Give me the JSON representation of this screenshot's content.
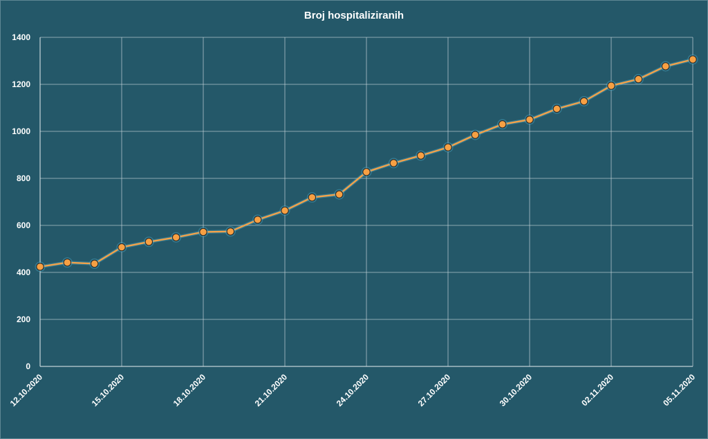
{
  "chart_data": {
    "type": "line",
    "title": "Broj hospitaliziranih",
    "xlabel": "",
    "ylabel": "",
    "ylim": [
      0,
      1400
    ],
    "yticks": [
      0,
      200,
      400,
      600,
      800,
      1000,
      1200,
      1400
    ],
    "x": [
      "12.10.2020",
      "13.10.2020",
      "14.10.2020",
      "15.10.2020",
      "16.10.2020",
      "17.10.2020",
      "18.10.2020",
      "19.10.2020",
      "20.10.2020",
      "21.10.2020",
      "22.10.2020",
      "23.10.2020",
      "24.10.2020",
      "25.10.2020",
      "26.10.2020",
      "27.10.2020",
      "28.10.2020",
      "29.10.2020",
      "30.10.2020",
      "31.10.2020",
      "01.11.2020",
      "02.11.2020",
      "03.11.2020",
      "04.11.2020",
      "05.11.2020"
    ],
    "xtick_labels": [
      "12.10.2020",
      "15.10.2020",
      "18.10.2020",
      "21.10.2020",
      "24.10.2020",
      "27.10.2020",
      "30.10.2020",
      "02.11.2020",
      "05.11.2020"
    ],
    "series": [
      {
        "values": [
          424,
          442,
          437,
          507,
          530,
          549,
          572,
          574,
          624,
          663,
          719,
          732,
          827,
          865,
          897,
          932,
          985,
          1030,
          1050,
          1096,
          1128,
          1194,
          1222,
          1277,
          1306
        ]
      }
    ],
    "grid": true,
    "colors": {
      "background": "#245869",
      "line": "#f3a24a",
      "marker_fill": "#f7a043",
      "marker_stroke": "#2a2a2a"
    }
  }
}
